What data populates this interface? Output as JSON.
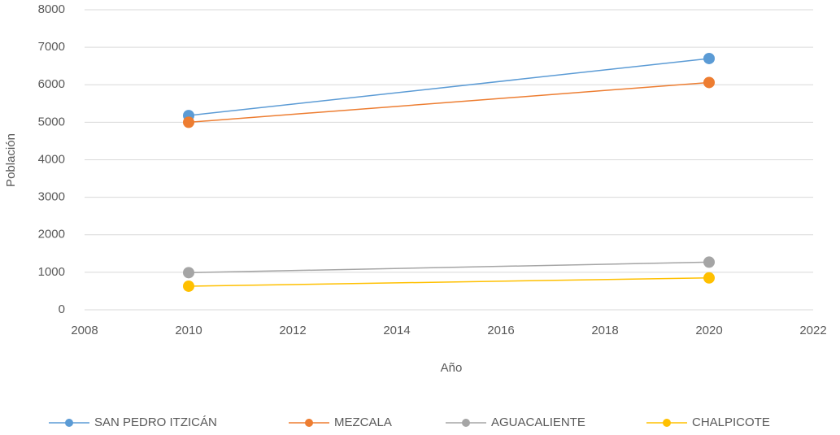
{
  "chart_data": {
    "type": "line",
    "xlabel": "Año",
    "ylabel": "Población",
    "x": [
      2010,
      2020
    ],
    "series": [
      {
        "name": "SAN PEDRO ITZICÁN",
        "color": "#5b9bd5",
        "values": [
          5180,
          6700
        ]
      },
      {
        "name": "MEZCALA",
        "color": "#ed7d31",
        "values": [
          5000,
          6060
        ]
      },
      {
        "name": "AGUACALIENTE",
        "color": "#a5a5a5",
        "values": [
          990,
          1270
        ]
      },
      {
        "name": "CHALPICOTE",
        "color": "#ffc000",
        "values": [
          630,
          850
        ]
      }
    ],
    "xlim": [
      2008,
      2022
    ],
    "xticks": [
      2008,
      2010,
      2012,
      2014,
      2016,
      2018,
      2020,
      2022
    ],
    "ylim": [
      0,
      8000
    ],
    "yticks": [
      0,
      1000,
      2000,
      3000,
      4000,
      5000,
      6000,
      7000,
      8000
    ],
    "grid": true,
    "legend": "bottom"
  }
}
